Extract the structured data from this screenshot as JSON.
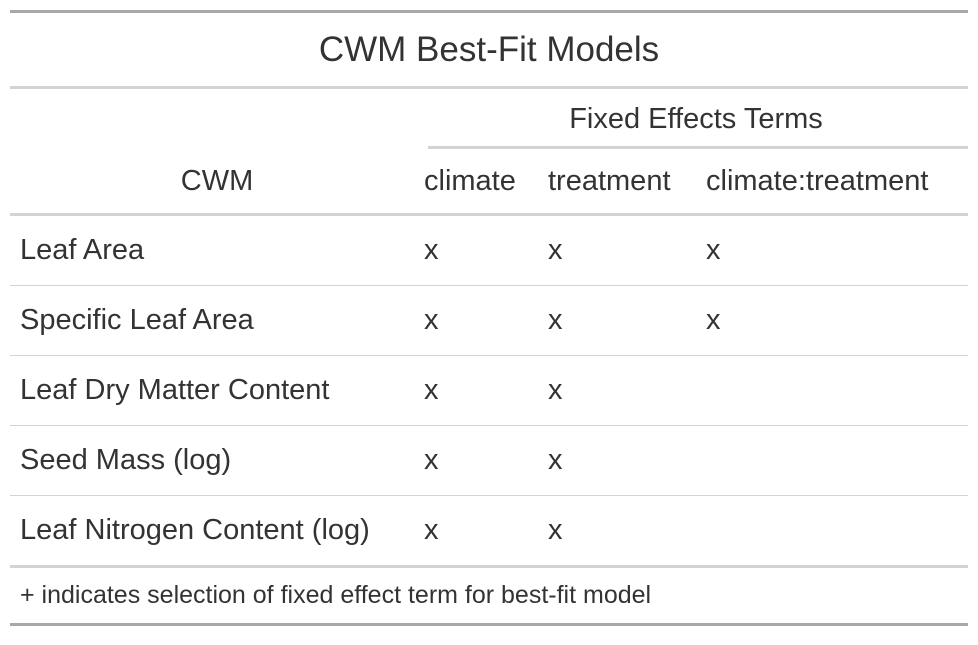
{
  "title": "CWM Best-Fit Models",
  "spanner_label": "Fixed Effects Terms",
  "columns": {
    "cwm": "CWM",
    "climate": "climate",
    "treatment": "treatment",
    "interaction": "climate:treatment"
  },
  "rows": [
    {
      "cwm": "Leaf Area",
      "climate": "x",
      "treatment": "x",
      "interaction": "x"
    },
    {
      "cwm": "Specific Leaf Area",
      "climate": "x",
      "treatment": "x",
      "interaction": "x"
    },
    {
      "cwm": "Leaf Dry Matter Content",
      "climate": "x",
      "treatment": "x",
      "interaction": ""
    },
    {
      "cwm": "Seed Mass (log)",
      "climate": "x",
      "treatment": "x",
      "interaction": ""
    },
    {
      "cwm": "Leaf Nitrogen Content (log)",
      "climate": "x",
      "treatment": "x",
      "interaction": ""
    }
  ],
  "footnote": "+ indicates selection of fixed effect term for best-fit model"
}
